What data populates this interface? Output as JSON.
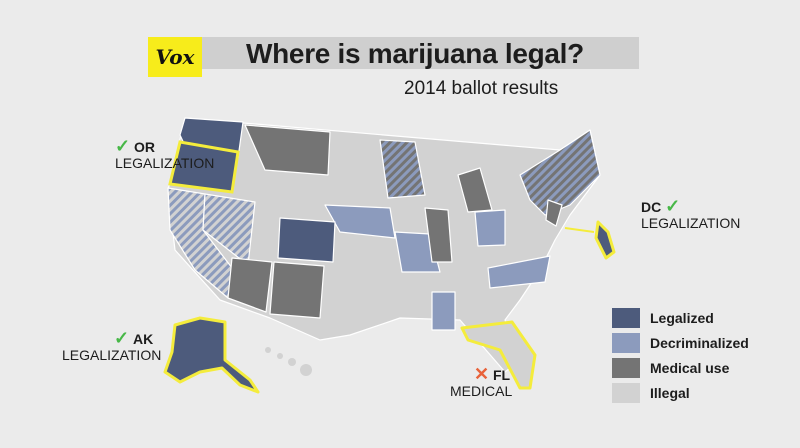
{
  "brand": "Vox",
  "title": "Where is marijuana legal?",
  "subtitle": "2014 ballot results",
  "colors": {
    "legalized": "#4d5b7c",
    "decriminalized": "#8c9bbd",
    "medical": "#747474",
    "illegal": "#d2d2d2",
    "highlight": "#f4ec3c",
    "check": "#48b848",
    "cross": "#e8623a"
  },
  "callouts": {
    "or": {
      "mark": "✓",
      "state": "OR",
      "result": "LEGALIZATION"
    },
    "dc": {
      "mark": "✓",
      "state": "DC",
      "result": "LEGALIZATION"
    },
    "ak": {
      "mark": "✓",
      "state": "AK",
      "result": "LEGALIZATION"
    },
    "fl": {
      "mark": "✕",
      "state": "FL",
      "result": "MEDICAL"
    }
  },
  "legend": [
    {
      "label": "Legalized",
      "color": "#4d5b7c"
    },
    {
      "label": "Decriminalized",
      "color": "#8c9bbd"
    },
    {
      "label": "Medical use",
      "color": "#747474"
    },
    {
      "label": "Illegal",
      "color": "#d2d2d2"
    }
  ]
}
